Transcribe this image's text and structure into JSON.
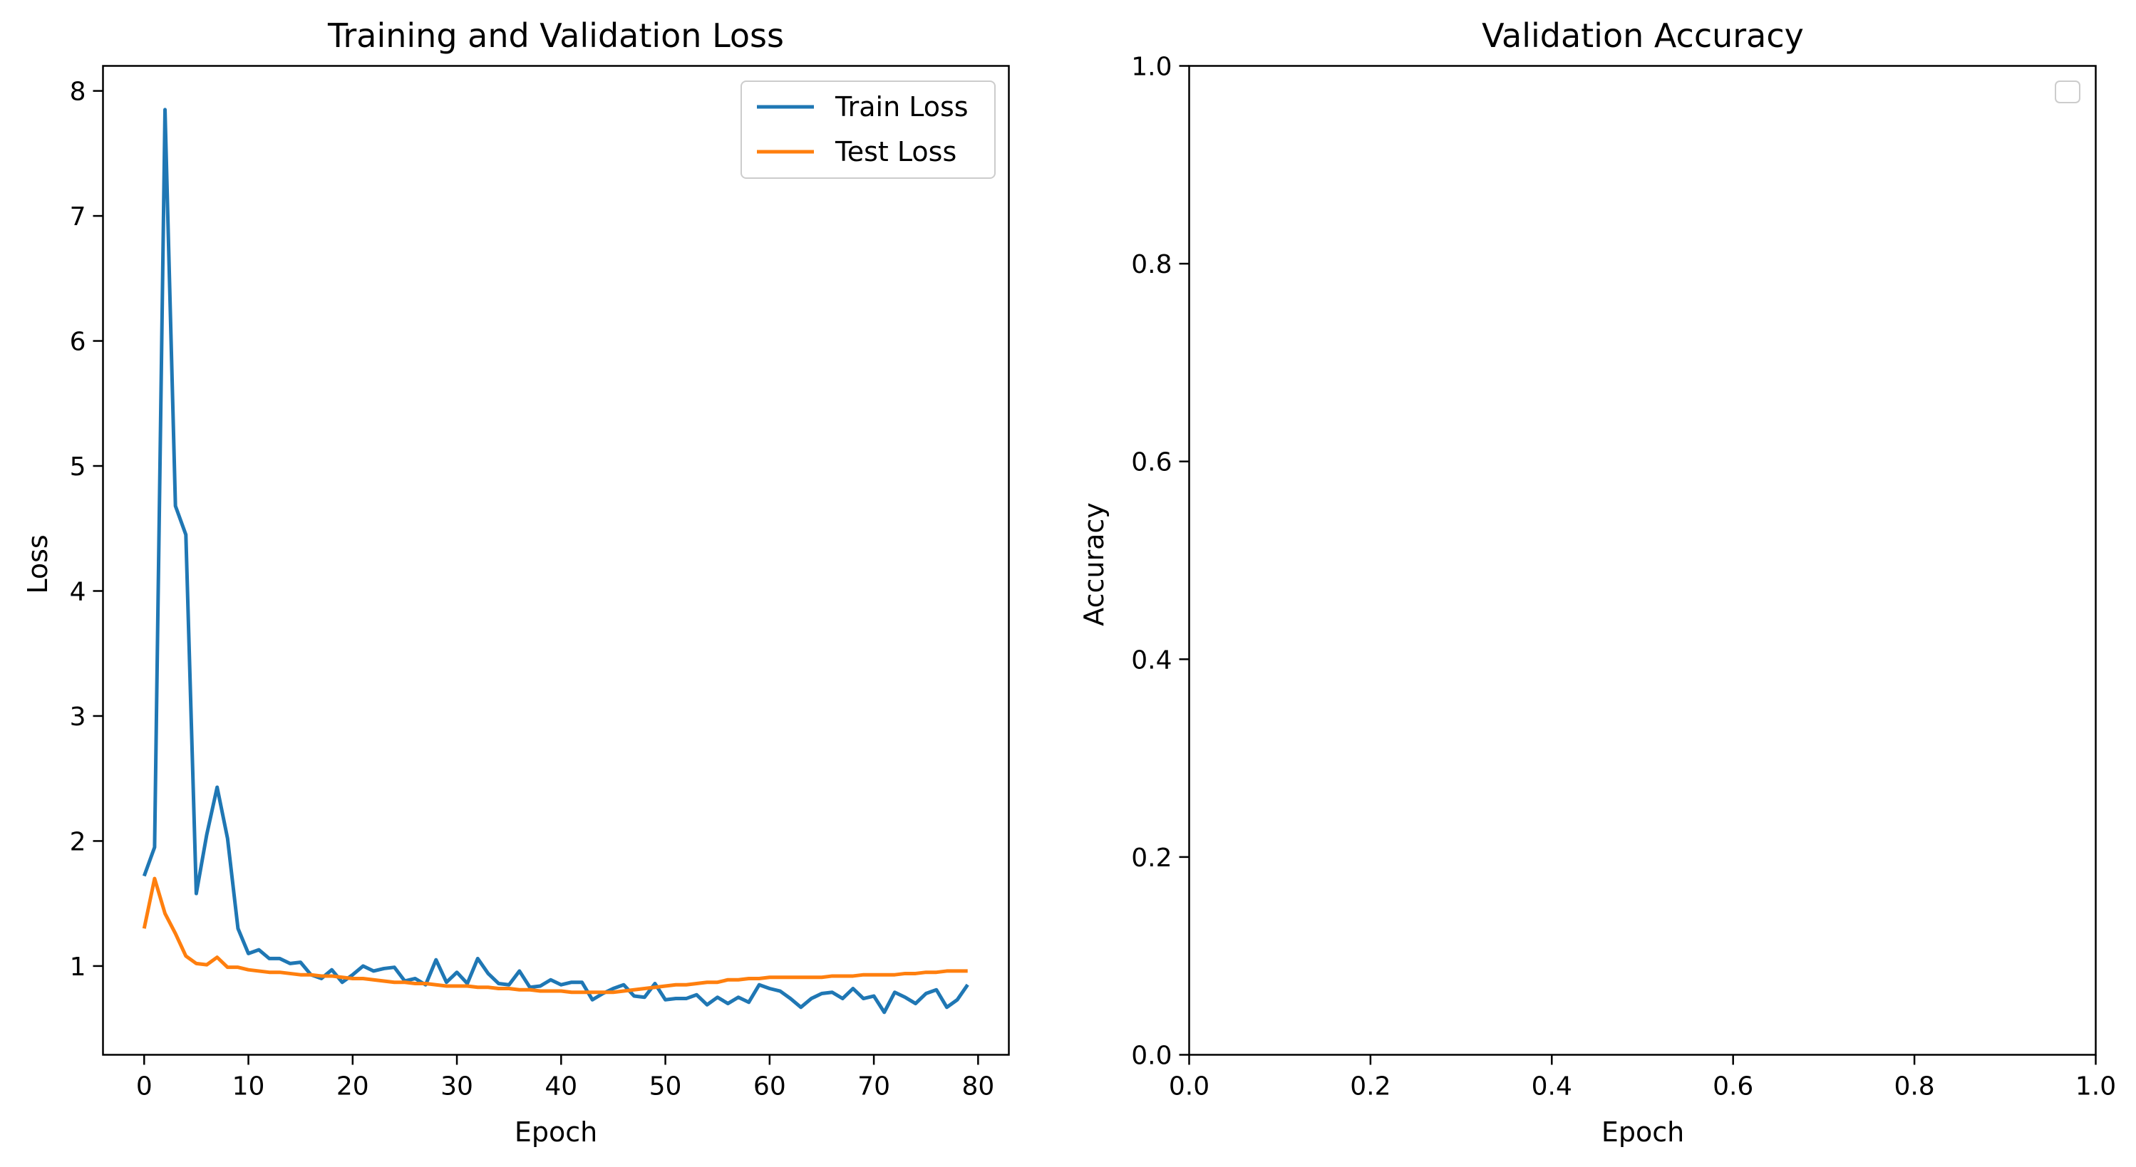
{
  "chart_data": [
    {
      "type": "line",
      "title": "Training and Validation Loss",
      "xlabel": "Epoch",
      "ylabel": "Loss",
      "xlim": [
        -3.95,
        82.95
      ],
      "ylim": [
        0.29,
        8.2
      ],
      "xticks": [
        0,
        10,
        20,
        30,
        40,
        50,
        60,
        70,
        80
      ],
      "yticks": [
        1,
        2,
        3,
        4,
        5,
        6,
        7,
        8
      ],
      "grid": false,
      "legend": "top-right",
      "series": [
        {
          "name": "Train Loss",
          "color": "#1f77b4",
          "x": [
            0,
            1,
            2,
            3,
            4,
            5,
            6,
            7,
            8,
            9,
            10,
            11,
            12,
            13,
            14,
            15,
            16,
            17,
            18,
            19,
            20,
            21,
            22,
            23,
            24,
            25,
            26,
            27,
            28,
            29,
            30,
            31,
            32,
            33,
            34,
            35,
            36,
            37,
            38,
            39,
            40,
            41,
            42,
            43,
            44,
            45,
            46,
            47,
            48,
            49,
            50,
            51,
            52,
            53,
            54,
            55,
            56,
            57,
            58,
            59,
            60,
            61,
            62,
            63,
            64,
            65,
            66,
            67,
            68,
            69,
            70,
            71,
            72,
            73,
            74,
            75,
            76,
            77,
            78,
            79
          ],
          "values": [
            1.72,
            1.95,
            7.85,
            4.68,
            4.45,
            1.58,
            2.05,
            2.43,
            2.02,
            1.3,
            1.1,
            1.13,
            1.06,
            1.06,
            1.02,
            1.03,
            0.93,
            0.9,
            0.97,
            0.87,
            0.93,
            1.0,
            0.96,
            0.98,
            0.99,
            0.88,
            0.9,
            0.85,
            1.05,
            0.87,
            0.95,
            0.86,
            1.06,
            0.94,
            0.86,
            0.85,
            0.96,
            0.83,
            0.84,
            0.89,
            0.85,
            0.87,
            0.87,
            0.73,
            0.78,
            0.82,
            0.85,
            0.76,
            0.75,
            0.86,
            0.73,
            0.74,
            0.74,
            0.77,
            0.69,
            0.75,
            0.7,
            0.75,
            0.71,
            0.85,
            0.82,
            0.8,
            0.74,
            0.67,
            0.74,
            0.78,
            0.79,
            0.74,
            0.82,
            0.74,
            0.76,
            0.63,
            0.79,
            0.75,
            0.7,
            0.78,
            0.81,
            0.67,
            0.73,
            0.85
          ]
        },
        {
          "name": "Test Loss",
          "color": "#ff7f0e",
          "x": [
            0,
            1,
            2,
            3,
            4,
            5,
            6,
            7,
            8,
            9,
            10,
            11,
            12,
            13,
            14,
            15,
            16,
            17,
            18,
            19,
            20,
            21,
            22,
            23,
            24,
            25,
            26,
            27,
            28,
            29,
            30,
            31,
            32,
            33,
            34,
            35,
            36,
            37,
            38,
            39,
            40,
            41,
            42,
            43,
            44,
            45,
            46,
            47,
            48,
            49,
            50,
            51,
            52,
            53,
            54,
            55,
            56,
            57,
            58,
            59,
            60,
            61,
            62,
            63,
            64,
            65,
            66,
            67,
            68,
            69,
            70,
            71,
            72,
            73,
            74,
            75,
            76,
            77,
            78,
            79
          ],
          "values": [
            1.3,
            1.7,
            1.42,
            1.26,
            1.08,
            1.02,
            1.01,
            1.07,
            0.99,
            0.99,
            0.97,
            0.96,
            0.95,
            0.95,
            0.94,
            0.93,
            0.93,
            0.92,
            0.92,
            0.91,
            0.9,
            0.9,
            0.89,
            0.88,
            0.87,
            0.87,
            0.86,
            0.86,
            0.85,
            0.84,
            0.84,
            0.84,
            0.83,
            0.83,
            0.82,
            0.82,
            0.81,
            0.81,
            0.8,
            0.8,
            0.8,
            0.79,
            0.79,
            0.79,
            0.79,
            0.79,
            0.8,
            0.81,
            0.82,
            0.83,
            0.84,
            0.85,
            0.85,
            0.86,
            0.87,
            0.87,
            0.89,
            0.89,
            0.9,
            0.9,
            0.91,
            0.91,
            0.91,
            0.91,
            0.91,
            0.91,
            0.92,
            0.92,
            0.92,
            0.93,
            0.93,
            0.93,
            0.93,
            0.94,
            0.94,
            0.95,
            0.95,
            0.96,
            0.96,
            0.96
          ]
        }
      ]
    },
    {
      "type": "line",
      "title": "Validation Accuracy",
      "xlabel": "Epoch",
      "ylabel": "Accuracy",
      "xlim": [
        0,
        1
      ],
      "ylim": [
        0,
        1
      ],
      "xticks": [
        0.0,
        0.2,
        0.4,
        0.6,
        0.8,
        1.0
      ],
      "yticks": [
        0.0,
        0.2,
        0.4,
        0.6,
        0.8,
        1.0
      ],
      "grid": false,
      "legend": "top-right",
      "series": []
    }
  ]
}
